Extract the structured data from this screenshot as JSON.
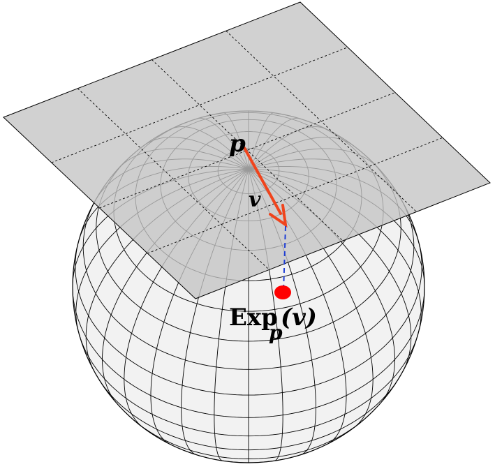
{
  "labels": {
    "point": "p",
    "vector": "v",
    "exp_main": "Exp",
    "exp_sub": "p",
    "exp_arg": "(v)"
  },
  "colors": {
    "background": "#ffffff",
    "sphere_fill": "#f2f2f2",
    "plane_fill": "#c4c4c4",
    "grid_line": "#000000",
    "vector_arrow": "#f0441c",
    "projection_line": "#1f3fd6",
    "exp_point": "#ff0000",
    "text": "#000000"
  }
}
